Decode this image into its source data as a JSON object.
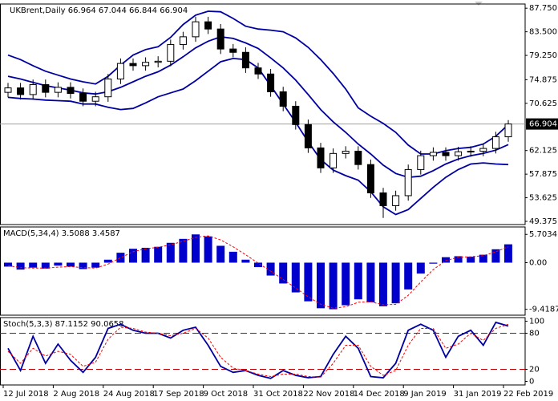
{
  "chart_data": [
    {
      "type": "candlestick",
      "title": "UKBrent,Daily  66.964 67.044 66.844 66.904",
      "categories": [
        "12 Jul 2018",
        null,
        null,
        null,
        "2 Aug 2018",
        null,
        null,
        null,
        "24 Aug 2018",
        null,
        null,
        null,
        "17 Sep 2018",
        null,
        null,
        null,
        "9 Oct 2018",
        null,
        null,
        null,
        "31 Oct 2018",
        null,
        null,
        null,
        "22 Nov 2018",
        null,
        null,
        null,
        "14 Dec 2018",
        null,
        null,
        null,
        "9 Jan 2019",
        null,
        null,
        null,
        "31 Jan 2019",
        null,
        null,
        null,
        "22 Feb 2019"
      ],
      "open": [
        72.6,
        73.4,
        72.2,
        74.0,
        72.6,
        73.5,
        72.4,
        71.0,
        71.8,
        75.0,
        77.8,
        77.4,
        78.0,
        78.2,
        81.2,
        82.6,
        85.3,
        84.0,
        80.4,
        79.8,
        77.0,
        75.9,
        72.7,
        70.1,
        66.8,
        62.6,
        59.0,
        61.6,
        62.0,
        59.6,
        54.5,
        52.2,
        54.0,
        58.7,
        61.2,
        61.8,
        61.2,
        61.9,
        62.0,
        62.5,
        64.6
      ],
      "high": [
        74.3,
        74.3,
        74.9,
        74.9,
        74.4,
        74.4,
        73.3,
        72.7,
        75.9,
        78.7,
        78.7,
        78.9,
        79.1,
        82.1,
        83.5,
        86.2,
        86.2,
        84.9,
        81.3,
        80.7,
        77.9,
        76.8,
        73.6,
        71.0,
        67.7,
        63.5,
        62.5,
        62.9,
        62.9,
        60.5,
        55.4,
        54.9,
        59.6,
        62.1,
        62.7,
        62.7,
        62.8,
        62.9,
        63.4,
        65.5,
        67.6
      ],
      "low": [
        71.7,
        71.3,
        71.3,
        71.7,
        71.7,
        71.5,
        70.1,
        70.1,
        70.9,
        74.1,
        76.5,
        76.5,
        77.1,
        77.3,
        80.3,
        81.7,
        83.1,
        79.5,
        78.9,
        76.1,
        75.0,
        71.8,
        69.2,
        65.9,
        61.7,
        58.1,
        58.1,
        60.7,
        58.7,
        53.6,
        50.0,
        51.3,
        53.1,
        57.8,
        60.3,
        60.3,
        60.3,
        61.0,
        61.1,
        61.6,
        63.7
      ],
      "close": [
        73.4,
        72.2,
        74.0,
        72.6,
        73.5,
        72.4,
        71.0,
        71.8,
        75.0,
        77.8,
        77.4,
        78.0,
        78.2,
        81.2,
        82.6,
        85.3,
        84.0,
        80.4,
        79.8,
        77.0,
        75.9,
        72.7,
        70.1,
        66.8,
        62.6,
        59.0,
        61.6,
        62.0,
        59.6,
        54.5,
        52.2,
        54.0,
        58.7,
        61.2,
        61.8,
        61.2,
        61.9,
        62.0,
        62.5,
        64.6,
        66.904
      ],
      "color": "#000000",
      "series": [
        {
          "color": "#0000a0",
          "values": [
            79.3,
            78.5,
            77.4,
            76.4,
            75.7,
            75.0,
            74.5,
            74.1,
            75.5,
            77.5,
            79.3,
            80.3,
            80.8,
            82.5,
            84.8,
            86.5,
            87.2,
            87.1,
            85.9,
            84.5,
            84.0,
            83.8,
            83.5,
            82.4,
            80.7,
            78.5,
            76.0,
            73.2,
            69.8,
            68.3,
            67.0,
            65.4,
            63.1,
            61.5,
            61.5,
            62.1,
            62.5,
            62.7,
            63.3,
            64.7,
            66.8
          ]
        },
        {
          "color": "#0000a0",
          "values": [
            75.5,
            75.0,
            74.4,
            73.8,
            73.4,
            73.0,
            72.5,
            72.3,
            72.7,
            73.5,
            74.5,
            75.5,
            76.3,
            77.5,
            79.0,
            80.6,
            81.8,
            82.6,
            82.3,
            81.5,
            80.5,
            78.8,
            77.0,
            74.8,
            72.2,
            69.5,
            67.3,
            65.4,
            63.3,
            61.5,
            59.5,
            58.0,
            57.3,
            57.5,
            58.5,
            59.7,
            60.6,
            61.2,
            61.6,
            62.2,
            63.2
          ]
        },
        {
          "color": "#0000a0",
          "values": [
            71.7,
            71.5,
            71.4,
            71.2,
            71.1,
            71.0,
            70.5,
            70.5,
            69.9,
            69.5,
            69.7,
            70.7,
            71.8,
            72.5,
            73.2,
            74.7,
            76.4,
            78.1,
            78.7,
            78.5,
            77.0,
            73.8,
            70.5,
            67.2,
            63.7,
            60.5,
            58.6,
            57.6,
            56.8,
            54.7,
            52.0,
            50.6,
            51.5,
            53.5,
            55.5,
            57.3,
            58.7,
            59.7,
            59.9,
            59.7,
            59.6
          ]
        }
      ],
      "current_price": 66.904,
      "ylim": [
        48.8,
        88.5
      ],
      "yticks": [
        {
          "value": 87.75,
          "label": "87.750"
        },
        {
          "value": 83.5,
          "label": "83.500"
        },
        {
          "value": 79.25,
          "label": "79.250"
        },
        74.875,
        70.625,
        62.125,
        57.875,
        53.625,
        49.375
      ]
    },
    {
      "type": "bar",
      "title": "MACD(5,34,4) 3.5088 3.4587",
      "color": "#0000cd",
      "values": [
        -0.8,
        -1.4,
        -1.0,
        -1.2,
        -0.6,
        -0.8,
        -1.3,
        -1.0,
        0.6,
        2.0,
        2.8,
        3.0,
        3.2,
        4.0,
        4.8,
        5.7,
        5.3,
        3.4,
        2.2,
        0.6,
        -0.9,
        -2.6,
        -4.2,
        -6.0,
        -7.8,
        -9.2,
        -9.4,
        -8.6,
        -7.4,
        -8.0,
        -8.8,
        -8.2,
        -5.4,
        -2.2,
        -0.2,
        1.1,
        1.3,
        1.2,
        1.6,
        2.7,
        3.7
      ],
      "series": [
        {
          "color": "#ff0000",
          "line_style": "dashed",
          "values": [
            -0.6,
            -1.0,
            -1.1,
            -1.1,
            -0.9,
            -0.8,
            -1.0,
            -1.1,
            -0.3,
            1.0,
            2.2,
            2.8,
            3.1,
            3.6,
            4.3,
            5.1,
            5.4,
            4.6,
            3.2,
            1.6,
            -0.1,
            -1.7,
            -3.4,
            -5.1,
            -6.9,
            -8.4,
            -9.2,
            -8.9,
            -8.0,
            -7.9,
            -8.5,
            -8.4,
            -6.6,
            -3.9,
            -1.4,
            0.4,
            1.1,
            1.2,
            1.4,
            2.2,
            3.2
          ]
        }
      ],
      "ylim": [
        -10.6,
        7.2
      ],
      "yticks": [
        5.7034,
        {
          "value": 0,
          "label": "0.00"
        },
        -9.4187
      ]
    },
    {
      "type": "line",
      "title": "Stoch(5,3,3) 87.1152 90.0658",
      "series": [
        {
          "color": "#0000a0",
          "line_style": "solid",
          "values": [
            55,
            18,
            75,
            30,
            62,
            35,
            15,
            40,
            88,
            95,
            85,
            80,
            80,
            72,
            85,
            90,
            60,
            25,
            15,
            18,
            10,
            5,
            18,
            10,
            6,
            8,
            45,
            75,
            55,
            8,
            6,
            30,
            85,
            95,
            85,
            40,
            75,
            85,
            60,
            98,
            92
          ]
        },
        {
          "color": "#ff0000",
          "line_style": "dashed",
          "values": [
            50,
            30,
            55,
            42,
            50,
            45,
            25,
            32,
            70,
            90,
            88,
            82,
            80,
            76,
            80,
            88,
            72,
            40,
            22,
            18,
            12,
            8,
            12,
            12,
            8,
            7,
            30,
            60,
            60,
            25,
            10,
            18,
            60,
            88,
            88,
            55,
            62,
            80,
            68,
            88,
            95
          ]
        }
      ],
      "levels": [
        80,
        20
      ],
      "level_color": "#c00000",
      "ylim": [
        -6,
        106
      ],
      "yticks": [
        100,
        80,
        20,
        0
      ]
    }
  ]
}
